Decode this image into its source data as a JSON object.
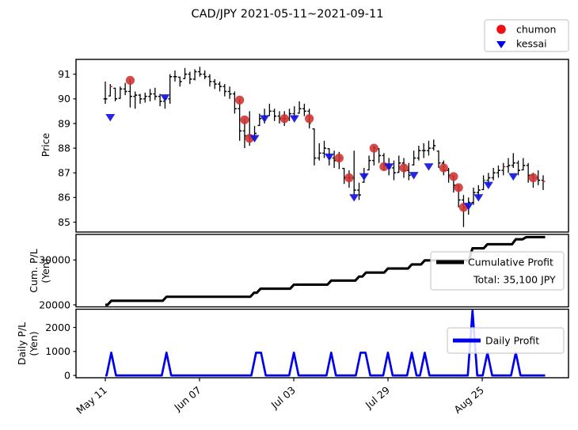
{
  "figure": {
    "title": "CAD/JPY 2021-05-11~2021-09-11",
    "background": "#ffffff"
  },
  "legend_top": {
    "items": [
      {
        "label": "chumon",
        "marker": "circle",
        "color": "#ee1111"
      },
      {
        "label": "kessai",
        "marker": "triangle-down",
        "color": "#0000ee"
      }
    ]
  },
  "xaxis": {
    "ticks": [
      {
        "pos": 0.0,
        "label": "May 11"
      },
      {
        "pos": 18.94,
        "label": "Jun 07"
      },
      {
        "pos": 37.88,
        "label": "Jul 03"
      },
      {
        "pos": 56.82,
        "label": "Jul 29"
      },
      {
        "pos": 75.76,
        "label": "Aug 25"
      }
    ]
  },
  "chart_data": [
    {
      "type": "ohlc-bar",
      "panel": "price",
      "title": "CAD/JPY 2021-05-11~2021-09-11",
      "ylabel": "Price",
      "ylim": [
        84.6,
        91.6
      ],
      "yticks": [
        85,
        86,
        87,
        88,
        89,
        90,
        91
      ],
      "bar_color": "#000000",
      "x_is_day_index": true,
      "highs": [
        90.7,
        90.6,
        90.45,
        90.5,
        90.65,
        90.8,
        90.3,
        90.2,
        90.25,
        90.4,
        90.45,
        90.2,
        90.1,
        91.0,
        91.15,
        90.9,
        91.25,
        91.1,
        91.2,
        91.3,
        91.15,
        91.0,
        90.8,
        90.7,
        90.6,
        90.5,
        90.3,
        90.0,
        89.2,
        89.5,
        88.9,
        89.4,
        89.6,
        89.8,
        89.6,
        89.5,
        89.5,
        89.6,
        89.7,
        89.9,
        89.8,
        89.6,
        88.8,
        88.2,
        88.3,
        88.0,
        87.9,
        87.85,
        87.2,
        87.1,
        87.9,
        86.6,
        87.2,
        87.7,
        88.1,
        88.0,
        87.8,
        87.6,
        87.5,
        87.7,
        87.6,
        87.4,
        87.9,
        88.1,
        88.2,
        88.3,
        88.35,
        87.9,
        87.5,
        87.2,
        86.9,
        86.5,
        86.1,
        86.0,
        86.4,
        86.5,
        86.9,
        87.0,
        87.2,
        87.3,
        87.4,
        87.6,
        87.8,
        87.5,
        87.6,
        87.4,
        87.0,
        87.1,
        86.9
      ],
      "lows": [
        89.8,
        90.1,
        89.9,
        90.0,
        90.15,
        89.65,
        89.6,
        89.8,
        89.85,
        89.9,
        89.95,
        89.7,
        89.6,
        89.8,
        90.7,
        90.5,
        90.8,
        90.6,
        90.75,
        90.9,
        90.8,
        90.5,
        90.4,
        90.3,
        90.1,
        90.0,
        89.4,
        88.3,
        88.0,
        88.1,
        88.3,
        88.9,
        89.0,
        89.3,
        89.1,
        89.0,
        88.9,
        89.1,
        89.2,
        89.4,
        89.3,
        88.8,
        87.3,
        87.5,
        87.6,
        87.3,
        87.2,
        87.15,
        86.55,
        86.4,
        86.1,
        85.9,
        86.6,
        87.1,
        87.3,
        87.4,
        87.1,
        86.9,
        86.7,
        87.0,
        86.8,
        86.7,
        87.3,
        87.5,
        87.6,
        87.7,
        87.9,
        87.2,
        86.9,
        86.6,
        86.2,
        85.6,
        84.8,
        85.3,
        85.7,
        86.0,
        86.3,
        86.5,
        86.7,
        86.8,
        86.9,
        87.0,
        87.2,
        86.9,
        87.1,
        86.6,
        86.4,
        86.5,
        86.3
      ],
      "closes": [
        90.0,
        90.5,
        90.0,
        90.4,
        90.3,
        90.1,
        90.15,
        90.0,
        90.1,
        90.2,
        90.1,
        89.9,
        90.0,
        90.9,
        90.9,
        90.7,
        91.0,
        90.8,
        91.1,
        91.0,
        90.9,
        90.7,
        90.6,
        90.5,
        90.3,
        90.2,
        89.6,
        88.7,
        88.5,
        88.4,
        88.6,
        89.2,
        89.3,
        89.5,
        89.3,
        89.2,
        89.2,
        89.4,
        89.3,
        89.6,
        89.5,
        89.0,
        87.6,
        87.8,
        88.0,
        87.6,
        87.5,
        87.6,
        86.8,
        86.8,
        86.3,
        86.1,
        86.9,
        87.5,
        88.0,
        87.7,
        87.3,
        87.2,
        87.0,
        87.4,
        87.1,
        86.9,
        87.6,
        87.9,
        87.9,
        88.0,
        88.1,
        87.4,
        87.1,
        86.9,
        86.5,
        85.9,
        85.6,
        85.8,
        86.2,
        86.3,
        86.7,
        86.8,
        87.0,
        87.1,
        87.25,
        87.3,
        87.4,
        87.1,
        87.3,
        86.9,
        86.8,
        86.7,
        86.65
      ],
      "close_tick_colors": {
        "1": "#cc2222",
        "41": "#2a8a2a",
        "76": "#2a8a2a",
        "80": "#cc2222",
        "86": "#2a8a2a",
        "88": "#cc2222"
      },
      "markers": {
        "chumon": {
          "color": "#d23131",
          "shape": "circle",
          "points": [
            [
              5,
              90.75
            ],
            [
              27,
              89.95
            ],
            [
              28,
              89.15
            ],
            [
              29,
              88.4
            ],
            [
              36,
              89.2
            ],
            [
              41,
              89.2
            ],
            [
              47,
              87.6
            ],
            [
              49,
              86.8
            ],
            [
              54,
              88.0
            ],
            [
              56,
              87.25
            ],
            [
              60,
              87.2
            ],
            [
              68,
              87.2
            ],
            [
              70,
              86.85
            ],
            [
              71,
              86.4
            ],
            [
              72,
              85.6
            ],
            [
              86,
              86.8
            ]
          ]
        },
        "kessai": {
          "color": "#1414dd",
          "shape": "triangle-down",
          "points": [
            [
              1,
              89.25
            ],
            [
              12,
              90.05
            ],
            [
              30,
              88.4
            ],
            [
              32,
              89.2
            ],
            [
              38,
              89.2
            ],
            [
              45,
              87.65
            ],
            [
              50,
              86.0
            ],
            [
              52,
              86.85
            ],
            [
              57,
              87.25
            ],
            [
              62,
              86.9
            ],
            [
              65,
              87.25
            ],
            [
              73,
              85.65
            ],
            [
              75,
              86.0
            ],
            [
              77,
              86.5
            ],
            [
              82,
              86.85
            ]
          ]
        }
      }
    },
    {
      "type": "line",
      "panel": "cumulative",
      "name": "Cumulative Profit",
      "ylabel_lines": [
        "Cum. P/L",
        "(Yen)"
      ],
      "ylim": [
        19550,
        35700
      ],
      "yticks": [
        20000,
        30000
      ],
      "line_color": "#000000",
      "total_label": "Total: 35,100 JPY",
      "total_value_jpy": 35100,
      "step_points": [
        [
          0,
          20000
        ],
        [
          1.2,
          20900
        ],
        [
          12.3,
          21800
        ],
        [
          29.9,
          22700
        ],
        [
          31.2,
          23600
        ],
        [
          37.9,
          24500
        ],
        [
          45.4,
          25400
        ],
        [
          51.0,
          26300
        ],
        [
          52.4,
          27200
        ],
        [
          56.8,
          28100
        ],
        [
          61.6,
          29000
        ],
        [
          64.2,
          29900
        ],
        [
          73.8,
          32600
        ],
        [
          76.8,
          33500
        ],
        [
          82.5,
          34600
        ],
        [
          84.6,
          35100
        ]
      ]
    },
    {
      "type": "line",
      "panel": "daily",
      "name": "Daily Profit",
      "ylabel_lines": [
        "Daily P/L",
        "(Yen)"
      ],
      "ylim": [
        -95,
        2760
      ],
      "yticks": [
        0,
        1000,
        2000
      ],
      "line_color": "#0000ee",
      "spikes": [
        [
          1.2,
          950,
          1
        ],
        [
          12.3,
          950,
          1
        ],
        [
          30.3,
          950,
          2
        ],
        [
          37.9,
          950,
          1
        ],
        [
          45.4,
          950,
          1
        ],
        [
          51.3,
          950,
          2
        ],
        [
          56.8,
          950,
          1
        ],
        [
          61.6,
          950,
          1
        ],
        [
          64.2,
          950,
          1
        ],
        [
          73.8,
          2700,
          1
        ],
        [
          76.8,
          950,
          1
        ],
        [
          82.5,
          950,
          1
        ]
      ]
    }
  ]
}
